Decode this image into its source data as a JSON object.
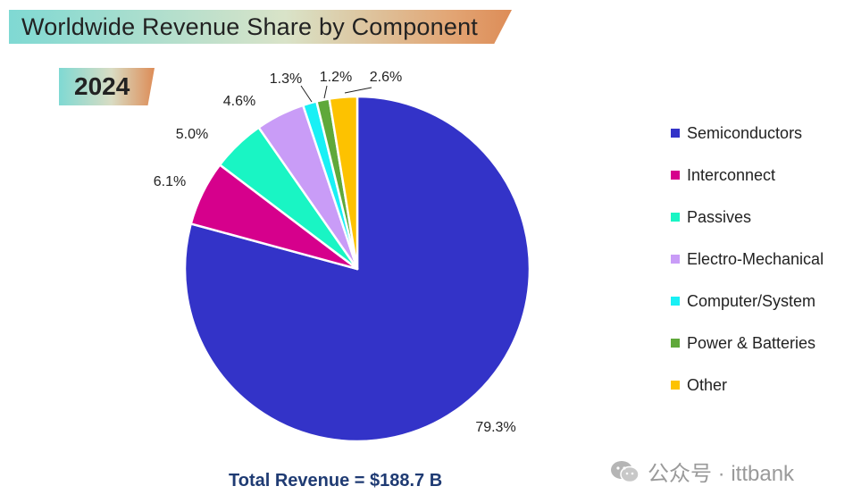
{
  "chart_data": {
    "type": "pie",
    "title": "Worldwide Revenue Share by Component",
    "subtitle": "2024",
    "categories": [
      "Semiconductors",
      "Interconnect",
      "Passives",
      "Electro-Mechanical",
      "Computer/System",
      "Power & Batteries",
      "Other"
    ],
    "values": [
      79.3,
      6.1,
      5.0,
      4.6,
      1.3,
      1.2,
      2.6
    ],
    "labels": [
      "79.3%",
      "6.1%",
      "5.0%",
      "4.6%",
      "1.3%",
      "1.2%",
      "2.6%"
    ],
    "colors": [
      "#3333c8",
      "#d6008c",
      "#19f5c4",
      "#c99cf7",
      "#19f0f5",
      "#5fa83a",
      "#fdc200"
    ],
    "legend_position": "right",
    "start_angle": "12 o'clock",
    "direction": "clockwise",
    "annotation": "Total Revenue = $188.7 B"
  },
  "watermark": "公众号 · ittbank"
}
